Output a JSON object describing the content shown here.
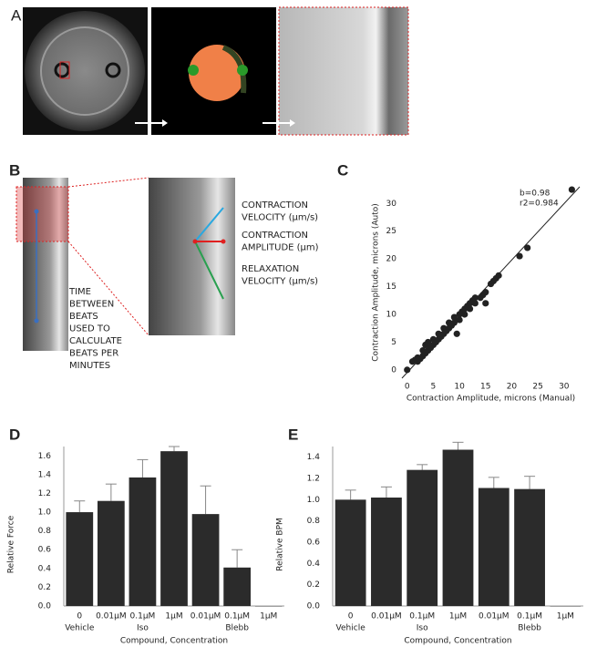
{
  "panel_labels": [
    "A",
    "B",
    "C",
    "D",
    "E"
  ],
  "panel_b": {
    "contraction_velocity": [
      "CONTRACTION",
      "VELOCITY (µm/s)"
    ],
    "contraction_amplitude": [
      "CONTRACTION",
      "AMPLITUDE (µm)"
    ],
    "relaxation_velocity": [
      "RELAXATION",
      "VELOCITY (µm/s)"
    ],
    "time_between_beats": [
      "TIME",
      "BETWEEN",
      "BEATS",
      "USED TO",
      "CALCULATE",
      "BEATS PER",
      "MINUTES"
    ]
  },
  "chart_data": [
    {
      "type": "scatter",
      "x_label": "Contraction Amplitude, microns (Manual)",
      "y_label": "Contraction Amplitude, microns (Auto)",
      "annotations": [
        "b=0.98",
        "r2=0.984"
      ],
      "color": "#222222",
      "xlim": [
        -1,
        33
      ],
      "ylim": [
        -1.5,
        33
      ],
      "xticks": [
        0,
        5,
        10,
        15,
        20,
        25,
        30
      ],
      "yticks": [
        0,
        5,
        10,
        15,
        20,
        25,
        30
      ],
      "x": [
        0,
        1,
        1.5,
        2,
        2,
        2.5,
        3,
        3,
        3.5,
        3.5,
        4,
        4,
        4.5,
        5,
        5,
        5.5,
        6,
        6,
        6.5,
        7,
        7,
        7.5,
        8,
        8,
        8.5,
        9,
        9,
        9.5,
        10,
        10,
        10.5,
        11,
        11,
        11.5,
        12,
        12,
        12.5,
        13,
        13,
        14,
        14.5,
        15,
        15,
        16,
        16.5,
        17,
        17.5,
        21.5,
        23,
        31.5
      ],
      "y": [
        0,
        1.5,
        1.8,
        1.5,
        2.2,
        2,
        2.5,
        3.5,
        3,
        4.5,
        3.5,
        5,
        4,
        4.5,
        5.5,
        5,
        5.5,
        6.5,
        6,
        6.5,
        7.5,
        7,
        7.5,
        8.5,
        8,
        8.5,
        9.5,
        6.5,
        9,
        10,
        10.5,
        10,
        11,
        11.5,
        11,
        12,
        12.5,
        13,
        12,
        13,
        13.5,
        14,
        12,
        15.5,
        16,
        16.5,
        17,
        20.5,
        22,
        32.5
      ]
    },
    {
      "type": "bar",
      "x_label": "Compound, Concentration",
      "y_label": "Relative Force",
      "categories": [
        "0",
        "0.01µM",
        "0.1µM",
        "1µM",
        "0.01µM",
        "0.1µM",
        "1µM"
      ],
      "groups": [
        "Vehicle",
        null,
        "Iso",
        null,
        null,
        "Blebb",
        null
      ],
      "values": [
        1.0,
        1.12,
        1.37,
        1.65,
        0.98,
        0.41,
        0
      ],
      "errors": [
        0.12,
        0.18,
        0.19,
        0.05,
        0.3,
        0.19,
        0
      ],
      "color": "#2b2b2b",
      "ylim": [
        0,
        1.7
      ],
      "yticks": [
        {
          "value": 0,
          "label": "0.0"
        },
        0.2,
        0.4,
        0.6,
        0.8,
        {
          "value": 1,
          "label": "1.0"
        },
        1.2,
        1.4,
        1.6
      ]
    },
    {
      "type": "bar",
      "x_label": "Compound, Concentration",
      "y_label": "Relative BPM",
      "categories": [
        "0",
        "0.01µM",
        "0.1µM",
        "1µM",
        "0.01µM",
        "0.1µM",
        "1µM"
      ],
      "groups": [
        "Vehicle",
        null,
        "Iso",
        null,
        null,
        "Blebb",
        null
      ],
      "values": [
        1.0,
        1.02,
        1.28,
        1.47,
        1.11,
        1.1,
        0
      ],
      "errors": [
        0.09,
        0.1,
        0.05,
        0.07,
        0.1,
        0.12,
        0
      ],
      "color": "#2b2b2b",
      "ylim": [
        0,
        1.5
      ],
      "yticks": [
        {
          "value": 0,
          "label": "0.0"
        },
        0.2,
        0.4,
        0.6,
        0.8,
        {
          "value": 1,
          "label": "1.0"
        },
        1.2,
        1.4
      ]
    }
  ]
}
